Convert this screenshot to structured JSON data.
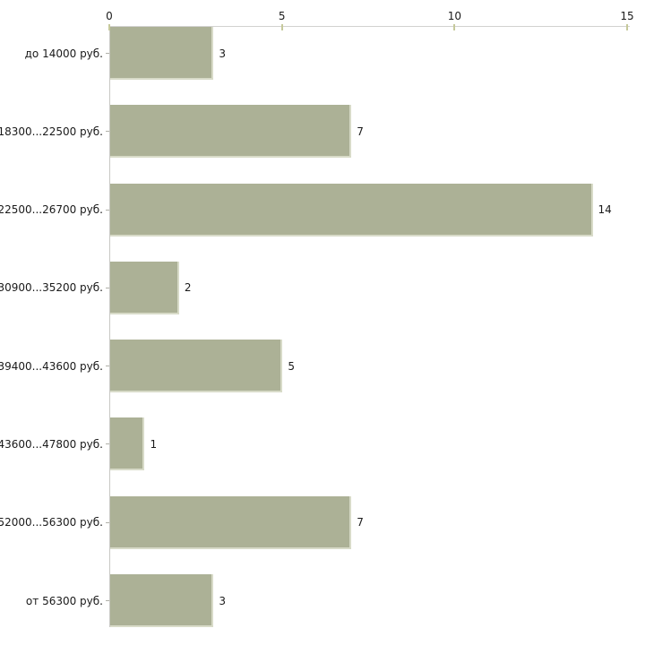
{
  "chart_data": {
    "type": "bar",
    "orientation": "horizontal",
    "title": "",
    "xlabel": "",
    "ylabel": "",
    "categories": [
      "до 14000 руб.",
      "18300...22500 руб.",
      "22500...26700 руб.",
      "30900...35200 руб.",
      "39400...43600 руб.",
      "43600...47800 руб.",
      "52000...56300 руб.",
      "от 56300 руб."
    ],
    "values": [
      3,
      7,
      14,
      2,
      5,
      1,
      7,
      3
    ],
    "xlim": [
      0,
      15
    ],
    "x_ticks": [
      0,
      5,
      10,
      15
    ],
    "grid": false,
    "legend": false,
    "colors": {
      "bar_fill": "#acb196",
      "bar_edge": "#d8dbc8",
      "axis_line": "#d2d2d0",
      "tick_mark": "#c6c99b",
      "text": "#1a1a1a",
      "background": "#ffffff"
    }
  }
}
